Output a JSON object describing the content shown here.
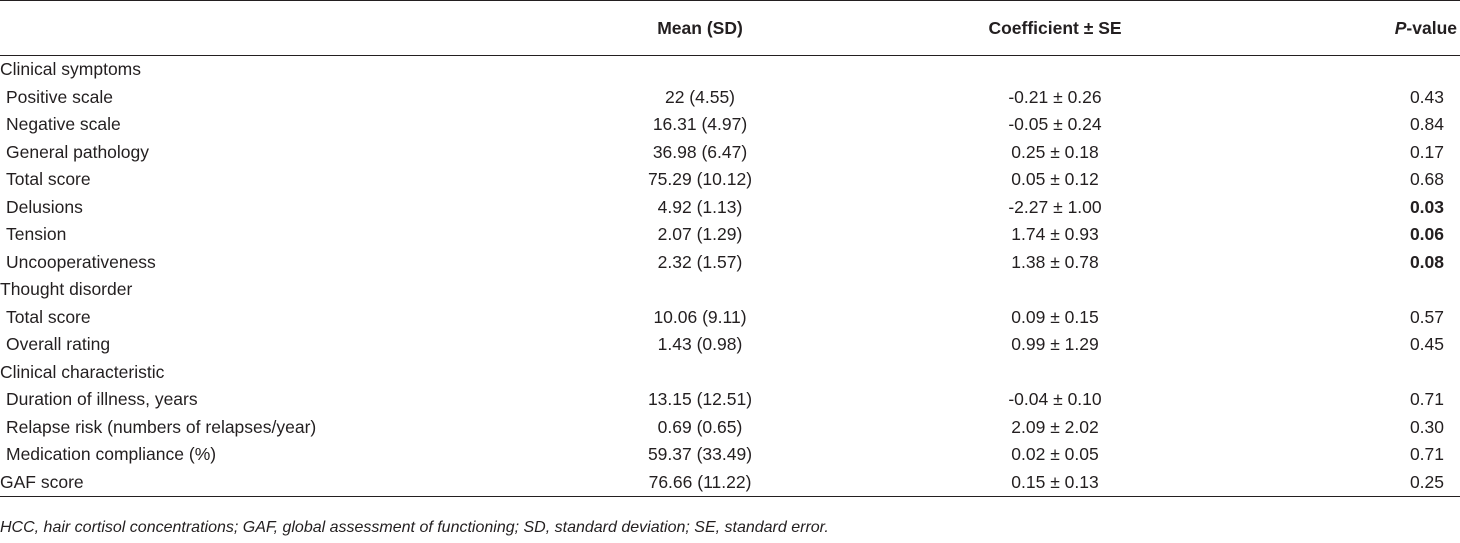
{
  "table": {
    "headers": {
      "label": "",
      "mean": "Mean (SD)",
      "coef": "Coefficient ± SE",
      "p_italic": "P",
      "p_rest": "-value"
    },
    "rows": [
      {
        "kind": "section",
        "label": "Clinical symptoms"
      },
      {
        "kind": "data",
        "label": "Positive scale",
        "mean": "22 (4.55)",
        "coef": "-0.21 ± 0.26",
        "p": "0.43",
        "bold": false
      },
      {
        "kind": "data",
        "label": "Negative scale",
        "mean": "16.31 (4.97)",
        "coef": "-0.05 ± 0.24",
        "p": "0.84",
        "bold": false
      },
      {
        "kind": "data",
        "label": "General pathology",
        "mean": "36.98 (6.47)",
        "coef": "0.25 ± 0.18",
        "p": "0.17",
        "bold": false
      },
      {
        "kind": "data",
        "label": "Total score",
        "mean": "75.29 (10.12)",
        "coef": "0.05 ± 0.12",
        "p": "0.68",
        "bold": false
      },
      {
        "kind": "data",
        "label": "Delusions",
        "mean": "4.92 (1.13)",
        "coef": "-2.27 ± 1.00",
        "p": "0.03",
        "bold": true
      },
      {
        "kind": "data",
        "label": "Tension",
        "mean": "2.07 (1.29)",
        "coef": "1.74 ± 0.93",
        "p": "0.06",
        "bold": true
      },
      {
        "kind": "data",
        "label": "Uncooperativeness",
        "mean": "2.32 (1.57)",
        "coef": "1.38 ± 0.78",
        "p": "0.08",
        "bold": true
      },
      {
        "kind": "section",
        "label": "Thought disorder"
      },
      {
        "kind": "data",
        "label": "Total score",
        "mean": "10.06 (9.11)",
        "coef": "0.09 ± 0.15",
        "p": "0.57",
        "bold": false
      },
      {
        "kind": "data",
        "label": "Overall rating",
        "mean": "1.43 (0.98)",
        "coef": "0.99 ± 1.29",
        "p": "0.45",
        "bold": false
      },
      {
        "kind": "section",
        "label": "Clinical characteristic"
      },
      {
        "kind": "data",
        "label": "Duration of illness, years",
        "mean": "13.15 (12.51)",
        "coef": "-0.04 ± 0.10",
        "p": "0.71",
        "bold": false
      },
      {
        "kind": "data",
        "label": "Relapse risk (numbers of relapses/year)",
        "mean": "0.69 (0.65)",
        "coef": "2.09 ± 2.02",
        "p": "0.30",
        "bold": false
      },
      {
        "kind": "data",
        "label": "Medication compliance (%)",
        "mean": "59.37 (33.49)",
        "coef": "0.02 ± 0.05",
        "p": "0.71",
        "bold": false
      },
      {
        "kind": "data-top",
        "label": "GAF score",
        "mean": "76.66 (11.22)",
        "coef": "0.15 ± 0.13",
        "p": "0.25",
        "bold": false
      }
    ]
  },
  "footnote": "HCC, hair cortisol concentrations; GAF, global assessment of functioning; SD, standard deviation; SE, standard error."
}
